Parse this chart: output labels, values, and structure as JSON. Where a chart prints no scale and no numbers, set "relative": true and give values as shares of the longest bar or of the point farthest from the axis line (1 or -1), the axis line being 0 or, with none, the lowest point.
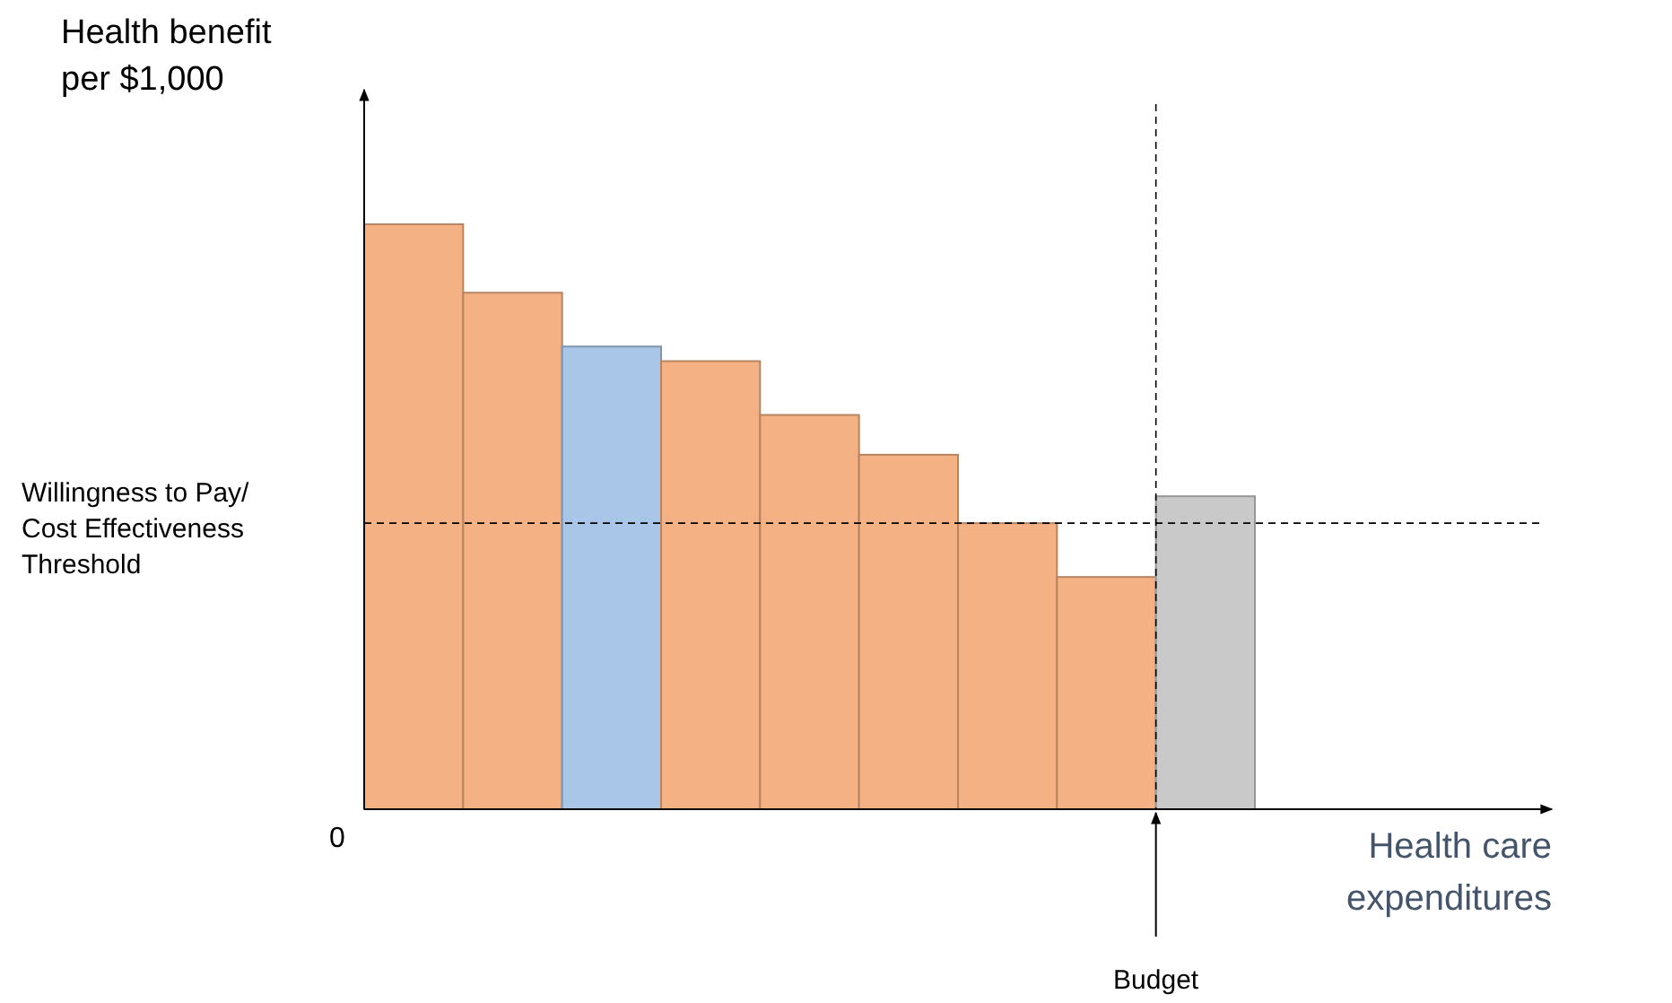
{
  "chart_data": {
    "type": "bar",
    "relative": true,
    "xlabel": "Health care expenditures",
    "ylabel": "Health benefit per $1,000",
    "categories": [
      null,
      null,
      null,
      null,
      null,
      null,
      null,
      null,
      null
    ],
    "values": [
      1,
      0.883,
      0.791,
      0.766,
      0.674,
      0.606,
      0.489,
      0.397,
      0.535
    ],
    "colors": [
      "#f4b183",
      "#f4b183",
      "#a9c6e8",
      "#f4b183",
      "#f4b183",
      "#f4b183",
      "#f4b183",
      "#f4b183",
      "#c9c9c9"
    ],
    "ref_lines": [
      {
        "axis": "y",
        "value": 0.489,
        "label": "Willingness to Pay/ Cost Effectiveness Threshold",
        "line_style": "dashed"
      }
    ],
    "annotations": [
      "0",
      "Budget"
    ]
  }
}
